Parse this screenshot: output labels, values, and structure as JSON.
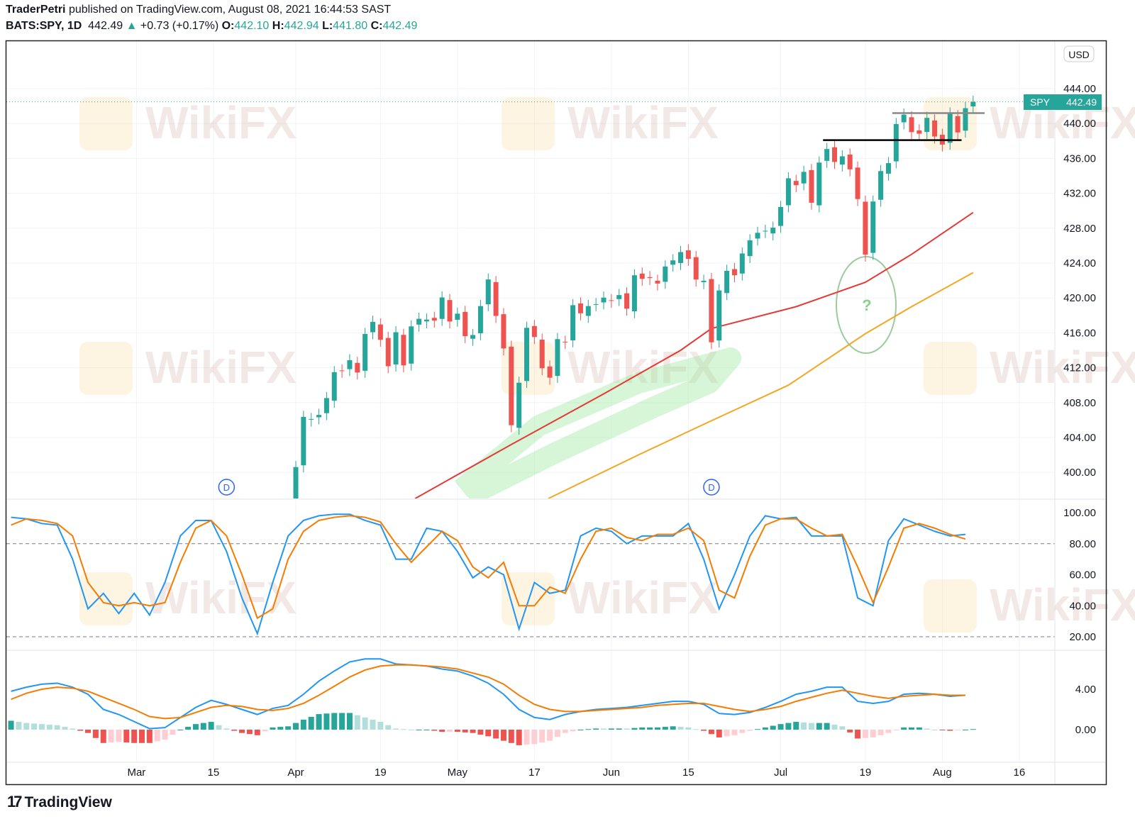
{
  "header": {
    "author": "TraderPetri",
    "published": "published on TradingView.com, August 08, 2021 16:44:53 SAST",
    "symbol": "BATS:SPY, 1D",
    "last": "442.49",
    "change": "+0.73 (+0.17%)",
    "o_label": "O:",
    "o": "442.10",
    "h_label": "H:",
    "h": "442.94",
    "l_label": "L:",
    "l": "441.80",
    "c_label": "C:",
    "c": "442.49"
  },
  "currency": "USD",
  "price_tag": {
    "symbol": "SPY",
    "value": "442.49"
  },
  "watermark": "WikiFX",
  "logo": "TradingView",
  "dividend_marker": "D",
  "colors": {
    "up": "#26a69a",
    "down": "#ef5350",
    "ma_fast": "#e53935",
    "ma_slow": "#f5a623",
    "k": "#2196f3",
    "d": "#f57c00"
  },
  "chart_data": {
    "type": "candlestick",
    "title": "BATS:SPY, 1D",
    "ylim": [
      398,
      446
    ],
    "price_ticks": [
      "444.00",
      "440.00",
      "436.00",
      "432.00",
      "428.00",
      "424.00",
      "420.00",
      "416.00",
      "412.00",
      "408.00",
      "404.00",
      "400.00"
    ],
    "time_ticks": [
      {
        "label": "Mar",
        "bar": -20.7
      },
      {
        "label": "15",
        "bar": -10.7
      },
      {
        "label": "Apr",
        "bar": 0
      },
      {
        "label": "19",
        "bar": 11
      },
      {
        "label": "May",
        "bar": 21
      },
      {
        "label": "17",
        "bar": 31
      },
      {
        "label": "Jun",
        "bar": 41
      },
      {
        "label": "15",
        "bar": 51
      },
      {
        "label": "Jul",
        "bar": 63
      },
      {
        "label": "19",
        "bar": 74
      },
      {
        "label": "Aug",
        "bar": 84
      },
      {
        "label": "16",
        "bar": 94
      }
    ],
    "first_bar": -1,
    "closes": [
      396.33,
      400.61,
      406.36,
      406.12,
      406.59,
      408.52,
      411.49,
      411.64,
      412.86,
      411.45,
      415.87,
      417.26,
      415.21,
      412.17,
      416.07,
      412.27,
      416.74,
      417.61,
      417.52,
      417.4,
      420.06,
      417.3,
      418.2,
      415.62,
      415.75,
      419.07,
      422.12,
      417.94,
      414.21,
      405.41,
      410.28,
      416.58,
      415.52,
      411.94,
      410.86,
      415.28,
      414.94,
      419.17,
      418.24,
      419.07,
      419.29,
      420.04,
      419.67,
      420.33,
      418.77,
      422.6,
      422.19,
      422.28,
      421.65,
      423.61,
      424.31,
      425.26,
      424.48,
      422.11,
      421.97,
      414.92,
      420.86,
      423.11,
      422.6,
      425.1,
      426.61,
      427.47,
      427.7,
      428.06,
      430.43,
      433.72,
      432.93,
      434.46,
      430.92,
      435.52,
      437.08,
      435.59,
      436.24,
      434.75,
      431.34,
      424.97,
      431.06,
      434.55,
      435.46,
      439.94,
      441.02,
      439.01,
      438.83,
      440.65,
      438.51,
      437.59,
      441.15,
      438.98,
      441.76,
      442.49
    ],
    "ma_fast": [
      [
        15.5,
        397
      ],
      [
        28,
        403.2
      ],
      [
        40,
        409
      ],
      [
        50,
        414
      ],
      [
        54,
        416.5
      ],
      [
        65,
        419
      ],
      [
        74,
        421.8
      ],
      [
        80,
        425
      ],
      [
        88,
        429.8
      ]
    ],
    "ma_slow": [
      [
        32.8,
        397
      ],
      [
        44.5,
        402
      ],
      [
        53.7,
        405.8
      ],
      [
        64,
        410
      ],
      [
        74,
        415.9
      ],
      [
        80,
        419
      ],
      [
        88,
        422.9
      ]
    ],
    "levels": [
      {
        "price": 438.1,
        "from_bar": 68.5,
        "to_bar": 86.5,
        "color": "#000000"
      },
      {
        "price": 441.2,
        "from_bar": 77.5,
        "to_bar": 89.5,
        "color": "#888888"
      }
    ],
    "dividends": [
      -9,
      54
    ],
    "stochastic": {
      "start_bar": -37,
      "step": 2,
      "levels": [
        "100.00",
        "80.00",
        "60.00",
        "40.00",
        "20.00"
      ],
      "bands": [
        80,
        20
      ],
      "k": [
        97,
        96,
        93,
        92,
        70,
        38,
        48,
        35,
        48,
        34,
        55,
        85,
        95,
        95,
        75,
        45,
        22,
        55,
        85,
        95,
        98,
        99,
        99,
        95,
        92,
        70,
        70,
        90,
        88,
        75,
        58,
        65,
        60,
        25,
        55,
        48,
        50,
        85,
        90,
        88,
        80,
        85,
        85,
        85,
        93,
        70,
        38,
        60,
        85,
        98,
        96,
        97,
        85,
        85,
        85,
        45,
        40,
        82,
        96,
        92,
        88,
        85,
        86
      ],
      "d": [
        92,
        96,
        95,
        93,
        85,
        55,
        42,
        40,
        42,
        40,
        42,
        68,
        90,
        95,
        85,
        60,
        32,
        38,
        70,
        88,
        95,
        97,
        98,
        97,
        94,
        80,
        68,
        78,
        88,
        82,
        65,
        58,
        68,
        40,
        40,
        52,
        48,
        70,
        88,
        90,
        84,
        82,
        86,
        86,
        90,
        82,
        50,
        45,
        72,
        92,
        96,
        96,
        90,
        85,
        86,
        65,
        42,
        65,
        90,
        93,
        90,
        86,
        83
      ]
    },
    "macd": {
      "start_bar": -37,
      "step": 2,
      "levels": [
        "4.00",
        "0.00"
      ],
      "macd": [
        3.8,
        4.2,
        4.5,
        4.6,
        4.2,
        3.5,
        2.0,
        1.5,
        0.8,
        0.1,
        0.2,
        1.2,
        2.2,
        2.9,
        2.5,
        2.0,
        1.5,
        2.1,
        2.4,
        3.5,
        4.8,
        5.8,
        6.7,
        7.0,
        7.0,
        6.5,
        6.4,
        6.3,
        6.0,
        5.8,
        5.3,
        4.6,
        3.5,
        2.0,
        1.2,
        1.0,
        1.5,
        1.8,
        2.0,
        2.1,
        2.2,
        2.4,
        2.6,
        2.8,
        2.8,
        2.5,
        1.6,
        1.5,
        1.7,
        2.2,
        2.8,
        3.5,
        3.8,
        4.2,
        4.2,
        2.8,
        2.6,
        2.8,
        3.5,
        3.6,
        3.5,
        3.3,
        3.4
      ],
      "signal": [
        3.0,
        3.6,
        4.0,
        4.2,
        4.1,
        3.8,
        3.2,
        2.6,
        2.0,
        1.3,
        1.1,
        1.2,
        1.7,
        2.2,
        2.4,
        2.3,
        2.0,
        1.9,
        2.1,
        2.6,
        3.4,
        4.3,
        5.2,
        5.9,
        6.3,
        6.4,
        6.4,
        6.3,
        6.2,
        6.0,
        5.6,
        5.2,
        4.5,
        3.4,
        2.5,
        2.0,
        1.8,
        1.8,
        1.9,
        2.0,
        2.1,
        2.2,
        2.4,
        2.5,
        2.6,
        2.6,
        2.3,
        2.0,
        1.8,
        2.0,
        2.3,
        2.8,
        3.2,
        3.6,
        3.9,
        3.6,
        3.3,
        3.1,
        3.3,
        3.4,
        3.5,
        3.4,
        3.4
      ]
    },
    "annotation": "?"
  }
}
